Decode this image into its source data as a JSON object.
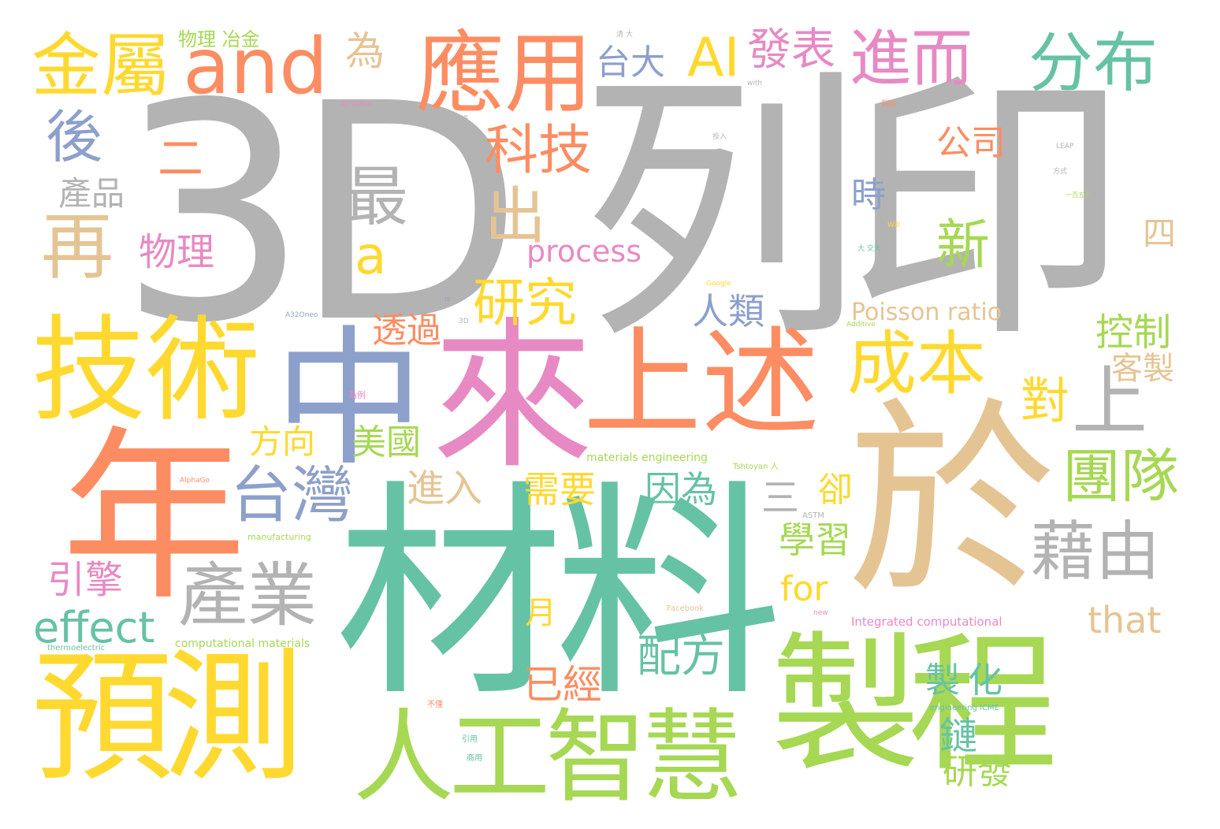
{
  "palette": {
    "gray": "#b3b3b3",
    "green": "#66c2a5",
    "orange": "#fc8d62",
    "blue": "#8da0cb",
    "pink": "#e78ac3",
    "lime": "#a6d854",
    "yellow": "#ffd92f",
    "tan": "#e5c494"
  },
  "words": [
    {
      "text": "3D"
    },
    {
      "text": "列印"
    },
    {
      "text": "材料"
    },
    {
      "text": "於"
    },
    {
      "text": "年"
    },
    {
      "text": "中"
    },
    {
      "text": "來"
    },
    {
      "text": "上述"
    },
    {
      "text": "製程"
    },
    {
      "text": "預測"
    },
    {
      "text": "人工智慧"
    },
    {
      "text": "技術"
    },
    {
      "text": "應用"
    },
    {
      "text": "金屬"
    },
    {
      "text": "and"
    },
    {
      "text": "進而"
    },
    {
      "text": "分布"
    },
    {
      "text": "AI"
    },
    {
      "text": "發表"
    },
    {
      "text": "台大"
    },
    {
      "text": "科技"
    },
    {
      "text": "為"
    },
    {
      "text": "後"
    },
    {
      "text": "二"
    },
    {
      "text": "產品"
    },
    {
      "text": "最"
    },
    {
      "text": "出"
    },
    {
      "text": "再"
    },
    {
      "text": "a"
    },
    {
      "text": "物理"
    },
    {
      "text": "新"
    },
    {
      "text": "公司"
    },
    {
      "text": "時"
    },
    {
      "text": "四"
    },
    {
      "text": "process"
    },
    {
      "text": "研究"
    },
    {
      "text": "人類"
    },
    {
      "text": "Poisson ratio"
    },
    {
      "text": "透過"
    },
    {
      "text": "控制"
    },
    {
      "text": "成本"
    },
    {
      "text": "客製"
    },
    {
      "text": "對"
    },
    {
      "text": "上"
    },
    {
      "text": "團隊"
    },
    {
      "text": "台灣"
    },
    {
      "text": "方向"
    },
    {
      "text": "美國"
    },
    {
      "text": "進入"
    },
    {
      "text": "需要"
    },
    {
      "text": "因為"
    },
    {
      "text": "卻"
    },
    {
      "text": "三"
    },
    {
      "text": "學習"
    },
    {
      "text": "藉由"
    },
    {
      "text": "產業"
    },
    {
      "text": "引擎"
    },
    {
      "text": "for"
    },
    {
      "text": "effect"
    },
    {
      "text": "月"
    },
    {
      "text": "that"
    },
    {
      "text": "配方"
    },
    {
      "text": "已經"
    },
    {
      "text": "製化"
    },
    {
      "text": "鏈"
    },
    {
      "text": "研發"
    },
    {
      "text": "物理 冶金"
    },
    {
      "text": "materials engineering"
    },
    {
      "text": "Integrated computational"
    },
    {
      "text": "computational materials"
    },
    {
      "text": "manufacturing"
    },
    {
      "text": "engineering ICME"
    },
    {
      "text": "thermoelectric"
    },
    {
      "text": "Amazon"
    },
    {
      "text": "Google"
    },
    {
      "text": "AlphaGo"
    },
    {
      "text": "Facebook"
    },
    {
      "text": "Tshtoyan 人"
    },
    {
      "text": "ASTM"
    },
    {
      "text": "Additive"
    },
    {
      "text": "LEAP"
    },
    {
      "text": "with"
    },
    {
      "text": "of"
    },
    {
      "text": "is"
    },
    {
      "text": "Will"
    },
    {
      "text": "new"
    },
    {
      "text": "3D"
    },
    {
      "text": "A32Oneo"
    },
    {
      "text": "引用"
    },
    {
      "text": "商用"
    },
    {
      "text": "列印"
    },
    {
      "text": "投入"
    },
    {
      "text": "市場"
    },
    {
      "text": "不僅"
    },
    {
      "text": "大 交大"
    },
    {
      "text": "方式"
    },
    {
      "text": "一百五十"
    },
    {
      "text": "清 大"
    },
    {
      "text": "為例"
    }
  ]
}
